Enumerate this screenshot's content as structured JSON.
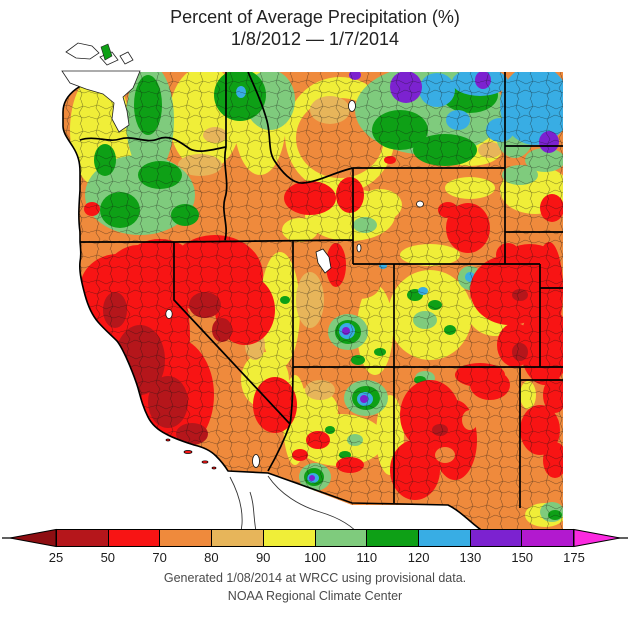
{
  "title": {
    "line1": "Percent of Average Precipitation (%)",
    "line2": "1/8/2012 — 1/7/2014"
  },
  "colorbar": {
    "units": "%",
    "ticks": [
      "25",
      "50",
      "70",
      "80",
      "90",
      "100",
      "110",
      "120",
      "130",
      "150",
      "175"
    ],
    "segment_colors": [
      "#b5161b",
      "#f81414",
      "#ef8a3c",
      "#e7b55a",
      "#f0ee38",
      "#7fcb7d",
      "#0ea016",
      "#38ade4",
      "#7c22d0",
      "#b219cf"
    ],
    "underflow_color": "#8e0e12",
    "overflow_color": "#fb2ae0",
    "bins": [
      "<25",
      "25-50",
      "50-70",
      "70-80",
      "80-90",
      "90-100",
      "100-110",
      "110-120",
      "120-130",
      "130-150",
      "150-175",
      ">175"
    ]
  },
  "map": {
    "region": "Western United States",
    "legend_units": "percent of average precipitation",
    "notable_patterns": [
      "California, Nevada and New Mexico largely 25-70% (red to dark red)",
      "Eastern Colorado plains and western Kansas heavily red (50-70%)",
      "Washington, Oregon, northern Idaho and northern Montana near or above average (yellow-green)",
      "Northeast Montana / North Dakota 120-150% (blue and purple patches)",
      "Isolated wet bullseyes (green/blue/purple) in central Utah, northern Arizona and southeast Arizona"
    ]
  },
  "footer": {
    "line1": "Generated 1/08/2014 at WRCC using provisional data.",
    "line2": "NOAA Regional Climate Center"
  }
}
